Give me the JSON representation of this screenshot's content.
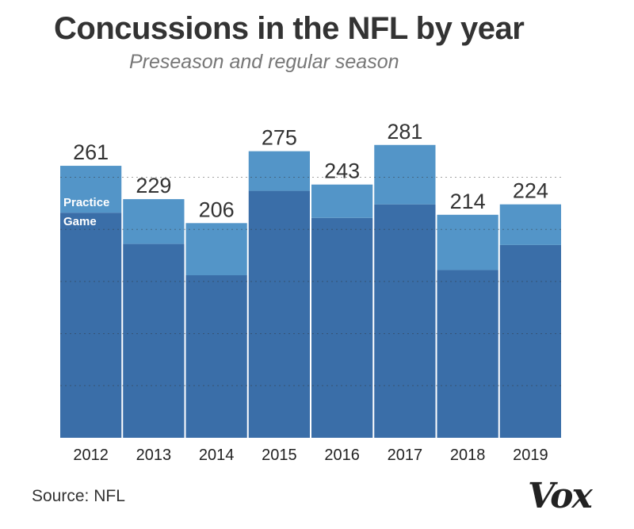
{
  "chart_data": {
    "type": "bar",
    "stacked": true,
    "title": "Concussions in the NFL by year",
    "subtitle": "Preseason and regular season",
    "categories": [
      "2012",
      "2013",
      "2014",
      "2015",
      "2016",
      "2017",
      "2018",
      "2019"
    ],
    "totals": [
      261,
      229,
      206,
      275,
      243,
      281,
      214,
      224
    ],
    "series": [
      {
        "name": "Game",
        "values": [
          216,
          186,
          156,
          237,
          211,
          224,
          161,
          185
        ],
        "color": "#3a6ea8"
      },
      {
        "name": "Practice",
        "values": [
          45,
          43,
          50,
          38,
          32,
          57,
          53,
          39
        ],
        "color": "#5395c8"
      }
    ],
    "ylim": [
      0,
      300
    ],
    "gridlines": [
      50,
      100,
      150,
      200,
      250
    ],
    "grid": true,
    "legend": "inside-first-bar"
  },
  "source": "Source: NFL",
  "logo": "Vox"
}
